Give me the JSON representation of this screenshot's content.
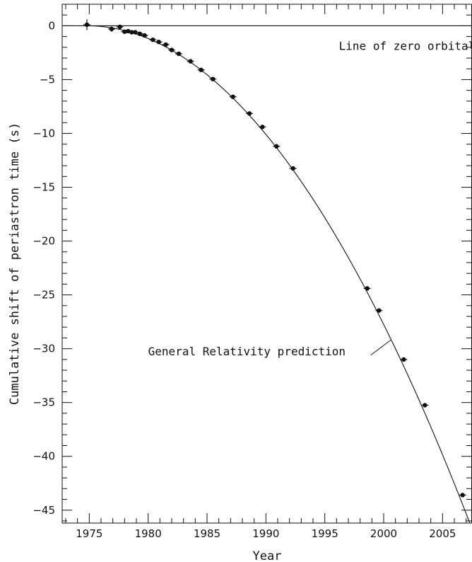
{
  "chart_data": {
    "type": "scatter",
    "xlabel": "Year",
    "ylabel": "Cumulative shift of periastron time (s)",
    "xlim": [
      1972.7,
      2007.5
    ],
    "ylim": [
      -46.2,
      2.0
    ],
    "x_ticks": [
      1975,
      1980,
      1985,
      1990,
      1995,
      2000,
      2005
    ],
    "y_ticks": [
      0,
      -5,
      -10,
      -15,
      -20,
      -25,
      -30,
      -35,
      -40,
      -45
    ],
    "grid": false,
    "series": [
      {
        "name": "Line of zero orbital decay",
        "kind": "line",
        "y": 0
      },
      {
        "name": "General Relativity prediction",
        "kind": "curve",
        "t0": 1974.8,
        "accel": -0.0437
      },
      {
        "name": "",
        "kind": "points",
        "points": [
          {
            "x": 1974.8,
            "y": 0.1,
            "err_y": 0.5
          },
          {
            "x": 1976.9,
            "y": -0.3,
            "err_y": 0.25
          },
          {
            "x": 1977.6,
            "y": -0.1,
            "err_y": 0.15
          },
          {
            "x": 1978.0,
            "y": -0.55,
            "err_y": 0.15
          },
          {
            "x": 1978.3,
            "y": -0.5,
            "err_y": 0.15
          },
          {
            "x": 1978.6,
            "y": -0.6,
            "err_y": 0.12
          },
          {
            "x": 1978.9,
            "y": -0.6,
            "err_y": 0.12
          },
          {
            "x": 1979.3,
            "y": -0.75,
            "err_y": 0.12
          },
          {
            "x": 1979.7,
            "y": -0.9,
            "err_y": 0.12
          },
          {
            "x": 1980.4,
            "y": -1.3,
            "err_y": 0.12
          },
          {
            "x": 1980.9,
            "y": -1.5,
            "err_y": 0.12
          },
          {
            "x": 1981.5,
            "y": -1.75,
            "err_y": 0.12
          },
          {
            "x": 1982.0,
            "y": -2.25,
            "err_y": 0.12
          },
          {
            "x": 1982.6,
            "y": -2.6,
            "err_y": 0.12
          },
          {
            "x": 1983.6,
            "y": -3.3,
            "err_y": 0.12
          },
          {
            "x": 1984.5,
            "y": -4.1,
            "err_y": 0.12
          },
          {
            "x": 1985.5,
            "y": -4.95,
            "err_y": 0.12
          },
          {
            "x": 1987.2,
            "y": -6.6,
            "err_y": 0.12
          },
          {
            "x": 1988.6,
            "y": -8.15,
            "err_y": 0.12
          },
          {
            "x": 1989.7,
            "y": -9.4,
            "err_y": 0.12
          },
          {
            "x": 1990.9,
            "y": -11.2,
            "err_y": 0.12
          },
          {
            "x": 1992.3,
            "y": -13.25,
            "err_y": 0.12
          },
          {
            "x": 1998.6,
            "y": -24.4,
            "err_y": 0.15
          },
          {
            "x": 1999.6,
            "y": -26.45,
            "err_y": 0.15
          },
          {
            "x": 2001.7,
            "y": -31.0,
            "err_y": 0.15
          },
          {
            "x": 2003.5,
            "y": -35.25,
            "err_y": 0.15
          },
          {
            "x": 2006.7,
            "y": -43.6,
            "err_y": 0.15
          }
        ]
      }
    ],
    "annotations": [
      {
        "text": "Line of zero orbital decay",
        "x": 1996.2,
        "y": -1.9
      },
      {
        "text": "General Relativity prediction",
        "x": 1980.0,
        "y": -30.3,
        "pointer_from": [
          1998.9,
          -30.6
        ],
        "pointer_to": [
          2000.6,
          -29.2
        ]
      }
    ],
    "colors": {
      "ink": "#111111",
      "background": "#ffffff"
    }
  }
}
